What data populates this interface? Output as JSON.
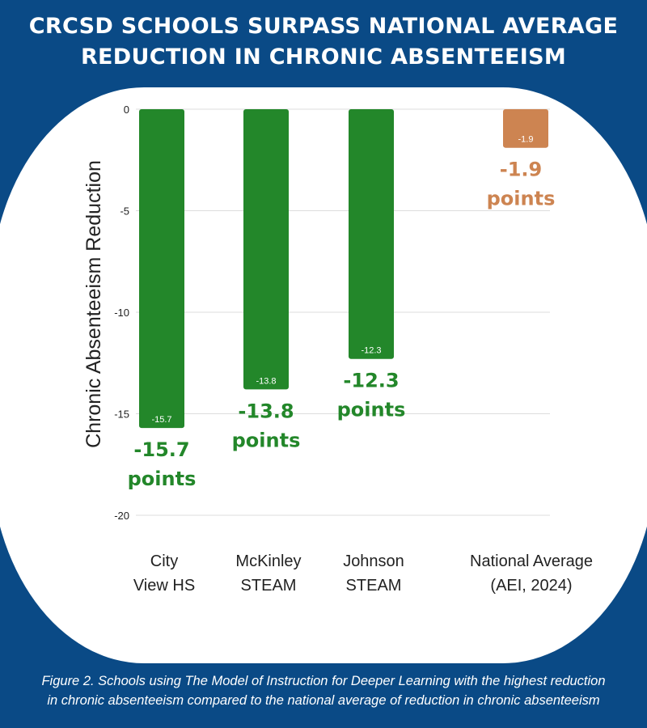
{
  "title": {
    "line1": "CRCSD SCHOOLS SURPASS NATIONAL AVERAGE",
    "line2": "REDUCTION IN CHRONIC ABSENTEEISM"
  },
  "caption": {
    "line1": "Figure 2. Schools using The Model of Instruction for Deeper Learning with the highest reduction",
    "line2": "in chronic absenteeism compared to the national average of reduction in chronic absenteeism"
  },
  "colors": {
    "background": "#0a4a86",
    "panel": "#ffffff",
    "school_bar": "#23872a",
    "national_bar": "#cd8451",
    "grid": "#dddddd",
    "text": "#222222"
  },
  "chart_data": {
    "type": "bar",
    "title": "CRCSD SCHOOLS SURPASS NATIONAL AVERAGE REDUCTION IN CHRONIC ABSENTEEISM",
    "xlabel": "",
    "ylabel": "Chronic Absenteeism Reduction",
    "ylim": [
      -20,
      0
    ],
    "yticks": [
      0,
      -5,
      -10,
      -15,
      -20
    ],
    "grid": true,
    "legend": "none",
    "categories": [
      [
        "City",
        "View HS"
      ],
      [
        "McKinley",
        "STEAM"
      ],
      [
        "Johnson",
        "STEAM"
      ],
      [
        "National Average",
        "(AEI, 2024)"
      ]
    ],
    "values": [
      -15.7,
      -13.8,
      -12.3,
      -1.9
    ],
    "bar_labels": [
      "-15.7",
      "-13.8",
      "-12.3",
      "-1.9"
    ],
    "annotations": [
      [
        "-15.7",
        "points"
      ],
      [
        "-13.8",
        "points"
      ],
      [
        "-12.3",
        "points"
      ],
      [
        "-1.9",
        "points"
      ]
    ],
    "bar_colors": [
      "#23872a",
      "#23872a",
      "#23872a",
      "#cd8451"
    ]
  }
}
